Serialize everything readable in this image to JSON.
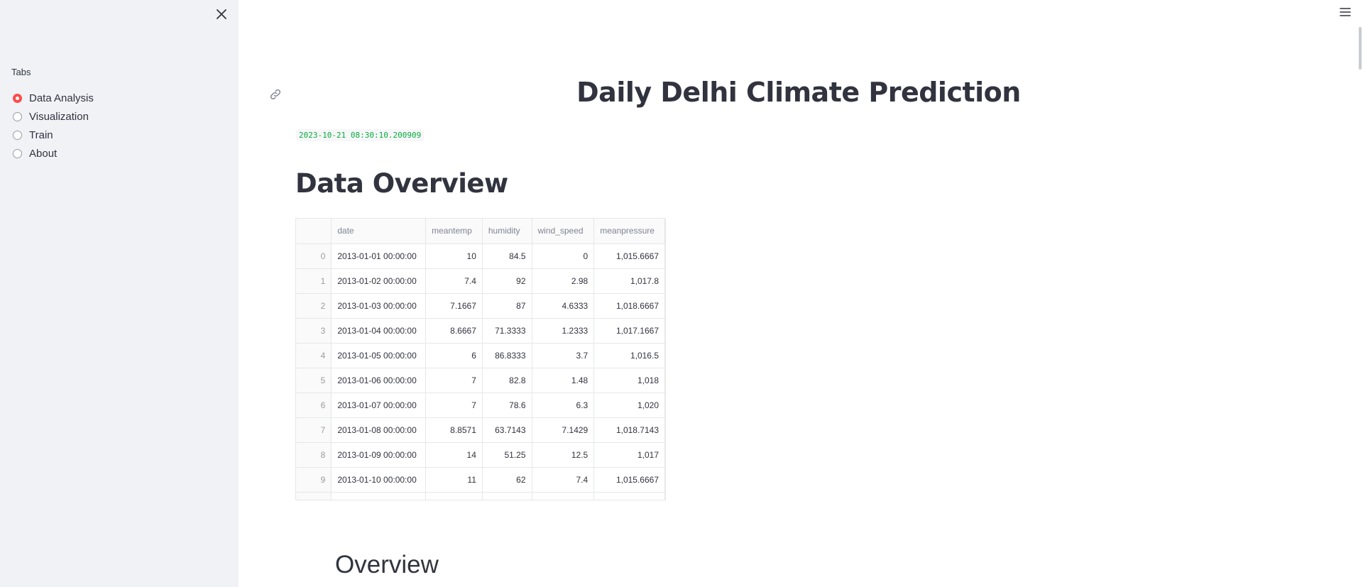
{
  "sidebar": {
    "tabs_label": "Tabs",
    "options": [
      {
        "label": "Data Analysis",
        "checked": true
      },
      {
        "label": "Visualization",
        "checked": false
      },
      {
        "label": "Train",
        "checked": false
      },
      {
        "label": "About",
        "checked": false
      }
    ]
  },
  "main": {
    "title": "Daily Delhi Climate Prediction",
    "timestamp": "2023-10-21 08:30:10.200909",
    "data_overview_title": "Data Overview",
    "overview_heading": "Overview"
  },
  "table": {
    "columns": [
      "",
      "date",
      "meantemp",
      "humidity",
      "wind_speed",
      "meanpressure"
    ],
    "rows": [
      [
        "0",
        "2013-01-01 00:00:00",
        "10",
        "84.5",
        "0",
        "1,015.6667"
      ],
      [
        "1",
        "2013-01-02 00:00:00",
        "7.4",
        "92",
        "2.98",
        "1,017.8"
      ],
      [
        "2",
        "2013-01-03 00:00:00",
        "7.1667",
        "87",
        "4.6333",
        "1,018.6667"
      ],
      [
        "3",
        "2013-01-04 00:00:00",
        "8.6667",
        "71.3333",
        "1.2333",
        "1,017.1667"
      ],
      [
        "4",
        "2013-01-05 00:00:00",
        "6",
        "86.8333",
        "3.7",
        "1,016.5"
      ],
      [
        "5",
        "2013-01-06 00:00:00",
        "7",
        "82.8",
        "1.48",
        "1,018"
      ],
      [
        "6",
        "2013-01-07 00:00:00",
        "7",
        "78.6",
        "6.3",
        "1,020"
      ],
      [
        "7",
        "2013-01-08 00:00:00",
        "8.8571",
        "63.7143",
        "7.1429",
        "1,018.7143"
      ],
      [
        "8",
        "2013-01-09 00:00:00",
        "14",
        "51.25",
        "12.5",
        "1,017"
      ],
      [
        "9",
        "2013-01-10 00:00:00",
        "11",
        "62",
        "7.4",
        "1,015.6667"
      ]
    ]
  },
  "icons": {
    "close": "close-icon",
    "menu": "hamburger-menu-icon",
    "link": "link-icon"
  },
  "colors": {
    "accent": "#ff4b4b",
    "sidebar_bg": "#f0f2f6",
    "timestamp_text": "#09ab3b"
  }
}
